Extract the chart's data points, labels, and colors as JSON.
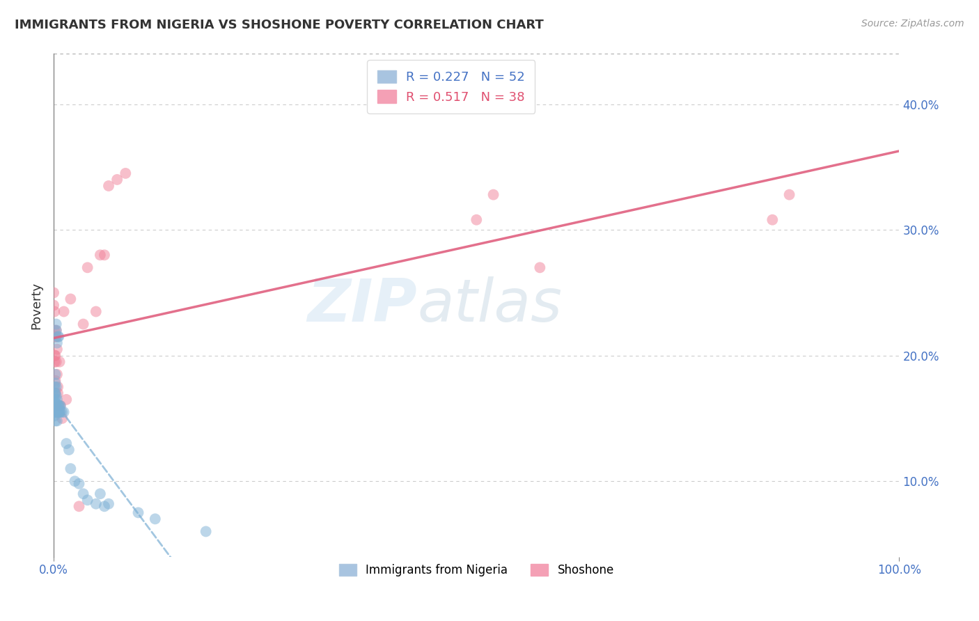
{
  "title": "IMMIGRANTS FROM NIGERIA VS SHOSHONE POVERTY CORRELATION CHART",
  "source": "Source: ZipAtlas.com",
  "ylabel": "Poverty",
  "xlim": [
    0,
    1.0
  ],
  "ylim": [
    0.04,
    0.44
  ],
  "yticks": [
    0.1,
    0.2,
    0.3,
    0.4
  ],
  "ytick_labels": [
    "10.0%",
    "20.0%",
    "30.0%",
    "40.0%"
  ],
  "nigeria_color": "#7bafd4",
  "shoshone_color": "#f08098",
  "nigeria_line_color": "#7bafd4",
  "shoshone_line_color": "#e06080",
  "nigeria_scatter": [
    [
      0.0,
      0.155
    ],
    [
      0.0,
      0.158
    ],
    [
      0.0,
      0.162
    ],
    [
      0.0,
      0.168
    ],
    [
      0.001,
      0.152
    ],
    [
      0.001,
      0.158
    ],
    [
      0.001,
      0.163
    ],
    [
      0.001,
      0.17
    ],
    [
      0.001,
      0.175
    ],
    [
      0.002,
      0.148
    ],
    [
      0.002,
      0.155
    ],
    [
      0.002,
      0.16
    ],
    [
      0.002,
      0.165
    ],
    [
      0.002,
      0.17
    ],
    [
      0.002,
      0.178
    ],
    [
      0.002,
      0.185
    ],
    [
      0.003,
      0.155
    ],
    [
      0.003,
      0.162
    ],
    [
      0.003,
      0.168
    ],
    [
      0.003,
      0.175
    ],
    [
      0.003,
      0.22
    ],
    [
      0.003,
      0.225
    ],
    [
      0.004,
      0.148
    ],
    [
      0.004,
      0.158
    ],
    [
      0.004,
      0.165
    ],
    [
      0.004,
      0.21
    ],
    [
      0.005,
      0.155
    ],
    [
      0.005,
      0.16
    ],
    [
      0.005,
      0.215
    ],
    [
      0.006,
      0.155
    ],
    [
      0.006,
      0.16
    ],
    [
      0.006,
      0.215
    ],
    [
      0.007,
      0.155
    ],
    [
      0.007,
      0.16
    ],
    [
      0.008,
      0.155
    ],
    [
      0.008,
      0.16
    ],
    [
      0.01,
      0.155
    ],
    [
      0.012,
      0.155
    ],
    [
      0.015,
      0.13
    ],
    [
      0.018,
      0.125
    ],
    [
      0.02,
      0.11
    ],
    [
      0.025,
      0.1
    ],
    [
      0.03,
      0.098
    ],
    [
      0.035,
      0.09
    ],
    [
      0.04,
      0.085
    ],
    [
      0.05,
      0.082
    ],
    [
      0.055,
      0.09
    ],
    [
      0.06,
      0.08
    ],
    [
      0.065,
      0.082
    ],
    [
      0.1,
      0.075
    ],
    [
      0.12,
      0.07
    ],
    [
      0.18,
      0.06
    ]
  ],
  "shoshone_scatter": [
    [
      0.0,
      0.24
    ],
    [
      0.0,
      0.25
    ],
    [
      0.001,
      0.235
    ],
    [
      0.001,
      0.22
    ],
    [
      0.001,
      0.2
    ],
    [
      0.001,
      0.195
    ],
    [
      0.002,
      0.215
    ],
    [
      0.002,
      0.2
    ],
    [
      0.002,
      0.18
    ],
    [
      0.002,
      0.17
    ],
    [
      0.003,
      0.22
    ],
    [
      0.003,
      0.215
    ],
    [
      0.003,
      0.195
    ],
    [
      0.004,
      0.205
    ],
    [
      0.004,
      0.185
    ],
    [
      0.005,
      0.175
    ],
    [
      0.005,
      0.17
    ],
    [
      0.006,
      0.16
    ],
    [
      0.007,
      0.195
    ],
    [
      0.008,
      0.16
    ],
    [
      0.01,
      0.15
    ],
    [
      0.012,
      0.235
    ],
    [
      0.015,
      0.165
    ],
    [
      0.02,
      0.245
    ],
    [
      0.03,
      0.08
    ],
    [
      0.035,
      0.225
    ],
    [
      0.04,
      0.27
    ],
    [
      0.05,
      0.235
    ],
    [
      0.055,
      0.28
    ],
    [
      0.06,
      0.28
    ],
    [
      0.065,
      0.335
    ],
    [
      0.075,
      0.34
    ],
    [
      0.085,
      0.345
    ],
    [
      0.5,
      0.308
    ],
    [
      0.52,
      0.328
    ],
    [
      0.575,
      0.27
    ],
    [
      0.85,
      0.308
    ],
    [
      0.87,
      0.328
    ]
  ],
  "watermark_zip": "ZIP",
  "watermark_atlas": "atlas",
  "background_color": "#ffffff",
  "grid_color": "#cccccc"
}
